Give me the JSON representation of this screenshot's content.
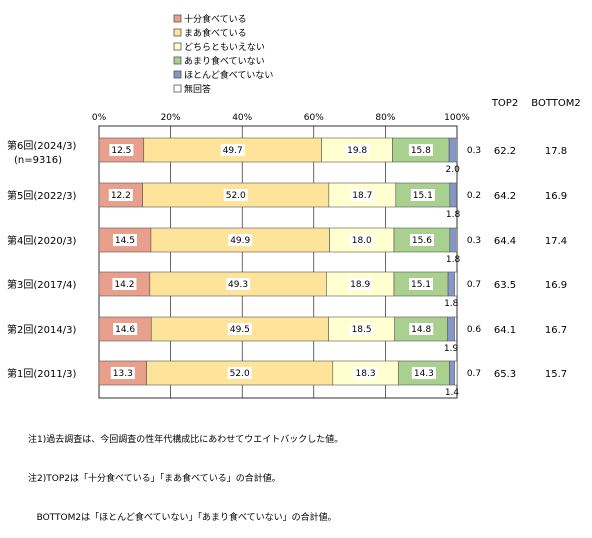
{
  "chart_data": {
    "type": "bar",
    "orientation": "horizontal",
    "stacked": true,
    "percent": true,
    "xlim": [
      0,
      100
    ],
    "tick_labels": [
      "0%",
      "20%",
      "40%",
      "60%",
      "80%",
      "100%"
    ],
    "grid": true,
    "legend_position": "top-left",
    "categories": [
      [
        "第6回(2024/3)",
        "(n=9316)"
      ],
      [
        "第5回(2022/3)"
      ],
      [
        "第4回(2020/3)"
      ],
      [
        "第3回(2017/4)"
      ],
      [
        "第2回(2014/3)"
      ],
      [
        "第1回(2011/3)"
      ]
    ],
    "series": [
      {
        "name": "十分食べている",
        "color": "#e8a08c",
        "values": [
          12.5,
          12.2,
          14.5,
          14.2,
          14.6,
          13.3
        ]
      },
      {
        "name": "まあ食べている",
        "color": "#fde49a",
        "values": [
          49.7,
          52.0,
          49.9,
          49.3,
          49.5,
          52.0
        ]
      },
      {
        "name": "どちらともいえない",
        "color": "#ffffd0",
        "values": [
          19.8,
          18.7,
          18.0,
          18.9,
          18.5,
          18.3
        ]
      },
      {
        "name": "あまり食べていない",
        "color": "#a9d08e",
        "values": [
          15.8,
          15.1,
          15.6,
          15.1,
          14.8,
          14.3
        ]
      },
      {
        "name": "ほとんど食べていない",
        "color": "#8497c8",
        "values": [
          2.0,
          1.8,
          1.8,
          1.8,
          1.9,
          1.4
        ]
      },
      {
        "name": "無回答",
        "color": "#ffffff",
        "values": [
          0.3,
          0.2,
          0.3,
          0.7,
          0.6,
          0.7
        ]
      }
    ],
    "value_labels": {
      "series_0": [
        "12.5",
        "12.2",
        "14.5",
        "14.2",
        "14.6",
        "13.3"
      ],
      "series_1": [
        "49.7",
        "52.0",
        "49.9",
        "49.3",
        "49.5",
        "52.0"
      ],
      "series_2": [
        "19.8",
        "18.7",
        "18.0",
        "18.9",
        "18.5",
        "18.3"
      ],
      "series_3": [
        "15.8",
        "15.1",
        "15.6",
        "15.1",
        "14.8",
        "14.3"
      ],
      "series_4": [
        "2.0",
        "1.8",
        "1.8",
        "1.8",
        "1.9",
        "1.4"
      ],
      "series_5": [
        "0.3",
        "0.2",
        "0.3",
        "0.7",
        "0.6",
        "0.7"
      ]
    },
    "summary_headers": [
      "TOP2",
      "BOTTOM2"
    ],
    "top2": [
      "62.2",
      "64.2",
      "64.4",
      "63.5",
      "64.1",
      "65.3"
    ],
    "bottom2": [
      "17.8",
      "16.9",
      "17.4",
      "16.9",
      "16.7",
      "15.7"
    ]
  },
  "notes": [
    "注1)過去調査は、今回調査の性年代構成比にあわせてウエイトバックした値。",
    "注2)TOP2は「十分食べている」「まあ食べている」の合計値。",
    "   BOTTOM2は「ほとんど食べていない」「あまり食べていない」の合計値。"
  ]
}
